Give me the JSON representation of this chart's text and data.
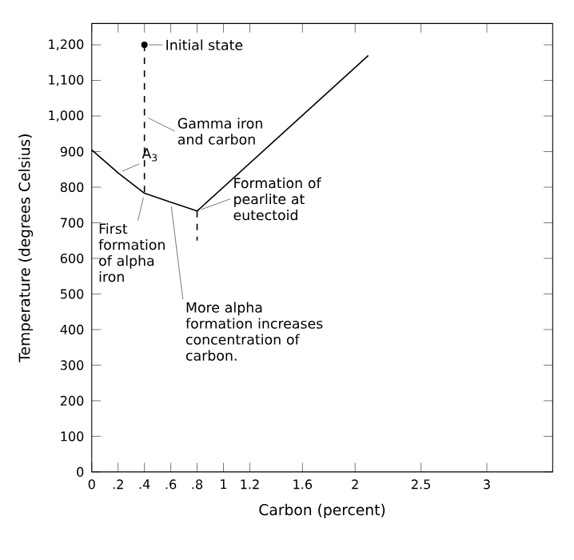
{
  "chart_data": {
    "type": "line",
    "xlabel": "Carbon (percent)",
    "ylabel": "Temperature (degrees Celsius)",
    "xlim": [
      0,
      3.5
    ],
    "ylim": [
      0,
      1260
    ],
    "xticks": [
      0,
      {
        "value": 0.2,
        "label": ".2"
      },
      {
        "value": 0.4,
        "label": ".4"
      },
      {
        "value": 0.6,
        "label": ".6"
      },
      {
        "value": 0.8,
        "label": ".8"
      },
      1,
      1.2,
      1.6,
      2,
      2.5,
      3
    ],
    "yticks": [
      0,
      100,
      200,
      300,
      400,
      500,
      600,
      700,
      800,
      900,
      {
        "value": 1000,
        "label": "1,000"
      },
      {
        "value": 1100,
        "label": "1,100"
      },
      {
        "value": 1200,
        "label": "1,200"
      }
    ],
    "series": [
      {
        "color": "#000000",
        "x": [
          0,
          0.2,
          0.4,
          0.6,
          0.8
        ],
        "values": [
          905,
          840,
          783,
          758,
          733
        ]
      },
      {
        "color": "#000000",
        "x": [
          0.8,
          2.1
        ],
        "values": [
          733,
          1170
        ]
      },
      {
        "color": "#000000",
        "line_style": "dashed",
        "x": [
          0.4,
          0.4
        ],
        "values": [
          1200,
          783
        ]
      },
      {
        "color": "#000000",
        "line_style": "dashed",
        "x": [
          0.8,
          0.8
        ],
        "values": [
          733,
          650
        ]
      },
      {
        "type": "scatter",
        "color": "#000000",
        "marker": "circle",
        "x": [
          0.4
        ],
        "values": [
          1200
        ]
      }
    ],
    "annotations": [
      {
        "text": "Initial state",
        "x": 0.4,
        "y": 1200
      },
      {
        "text": "Gamma iron and carbon",
        "x": 0.4,
        "y": 1000
      },
      {
        "text": "A$_{3}$",
        "x": 0.2,
        "y": 840
      },
      {
        "text": "First formation of alpha iron",
        "x": 0.4,
        "y": 783
      },
      {
        "text": "Formation of pearlite at eutectoid",
        "x": 0.8,
        "y": 733
      },
      {
        "text": "More alpha formation increases concentration of carbon.",
        "x": 0.6,
        "y": 758
      }
    ]
  }
}
